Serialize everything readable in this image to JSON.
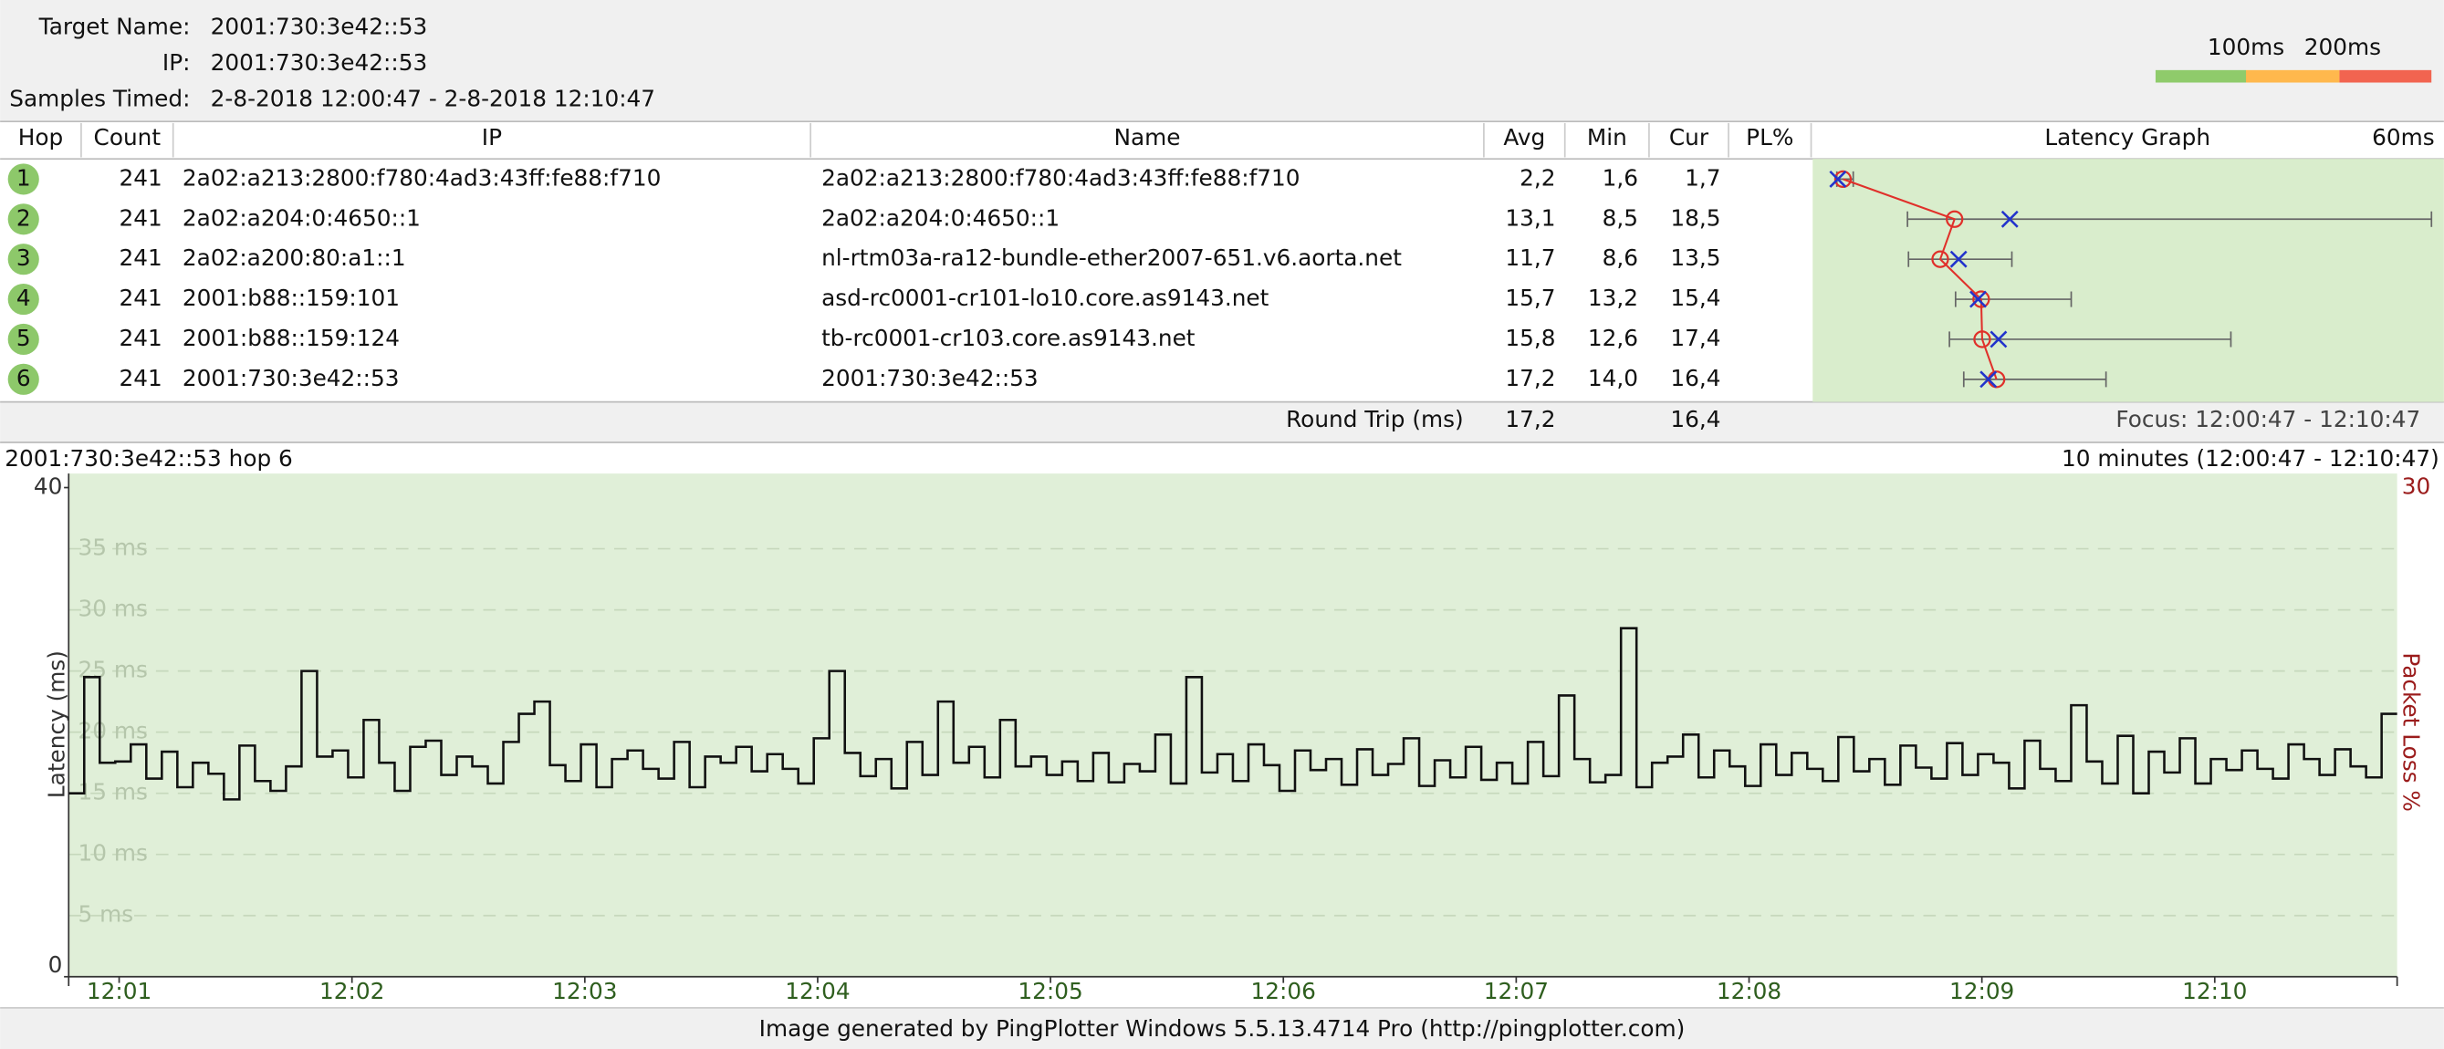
{
  "header": {
    "target_name_label": "Target Name:",
    "target_name": "2001:730:3e42::53",
    "ip_label": "IP:",
    "ip": "2001:730:3e42::53",
    "samples_label": "Samples Timed:",
    "samples": "2-8-2018 12:00:47 - 2-8-2018 12:10:47"
  },
  "scale_legend": {
    "labels": [
      "100ms",
      "200ms"
    ],
    "colors": [
      "#8fcb6b",
      "#ffb84d",
      "#f26450"
    ]
  },
  "table": {
    "columns": [
      "Hop",
      "Count",
      "IP",
      "Name",
      "Avg",
      "Min",
      "Cur",
      "PL%",
      "Latency Graph"
    ],
    "graph_scale": "60ms",
    "graph_max_ms": 60,
    "rows": [
      {
        "hop": 1,
        "count": 241,
        "ip": "2a02:a213:2800:f780:4ad3:43ff:fe88:f710",
        "name": "2a02:a213:2800:f780:4ad3:43ff:fe88:f710",
        "avg": {
          "value": 2.2,
          "label": "2,2"
        },
        "min": {
          "value": 1.6,
          "label": "1,6"
        },
        "cur": {
          "value": 1.7,
          "label": "1,7"
        },
        "max": 3.2
      },
      {
        "hop": 2,
        "count": 241,
        "ip": "2a02:a204:0:4650::1",
        "name": "2a02:a204:0:4650::1",
        "avg": {
          "value": 13.1,
          "label": "13,1"
        },
        "min": {
          "value": 8.5,
          "label": "8,5"
        },
        "cur": {
          "value": 18.5,
          "label": "18,5"
        },
        "max": 59.7
      },
      {
        "hop": 3,
        "count": 241,
        "ip": "2a02:a200:80:a1::1",
        "name": "nl-rtm03a-ra12-bundle-ether2007-651.v6.aorta.net",
        "avg": {
          "value": 11.7,
          "label": "11,7"
        },
        "min": {
          "value": 8.6,
          "label": "8,6"
        },
        "cur": {
          "value": 13.5,
          "label": "13,5"
        },
        "max": 18.7
      },
      {
        "hop": 4,
        "count": 241,
        "ip": "2001:b88::159:101",
        "name": "asd-rc0001-cr101-lo10.core.as9143.net",
        "avg": {
          "value": 15.7,
          "label": "15,7"
        },
        "min": {
          "value": 13.2,
          "label": "13,2"
        },
        "cur": {
          "value": 15.4,
          "label": "15,4"
        },
        "max": 24.5
      },
      {
        "hop": 5,
        "count": 241,
        "ip": "2001:b88::159:124",
        "name": "tb-rc0001-cr103.core.as9143.net",
        "avg": {
          "value": 15.8,
          "label": "15,8"
        },
        "min": {
          "value": 12.6,
          "label": "12,6"
        },
        "cur": {
          "value": 17.4,
          "label": "17,4"
        },
        "max": 40.1
      },
      {
        "hop": 6,
        "count": 241,
        "ip": "2001:730:3e42::53",
        "name": "2001:730:3e42::53",
        "avg": {
          "value": 17.2,
          "label": "17,2"
        },
        "min": {
          "value": 14.0,
          "label": "14,0"
        },
        "cur": {
          "value": 16.4,
          "label": "16,4"
        },
        "max": 27.9
      }
    ],
    "round_trip": {
      "label": "Round Trip (ms)",
      "avg": "17,2",
      "cur": "16,4"
    },
    "focus": "Focus: 12:00:47 - 12:10:47"
  },
  "chart_data": {
    "type": "line",
    "step": true,
    "title_left": "2001:730:3e42::53 hop 6",
    "title_right": "10 minutes (12:00:47 - 12:10:47)",
    "ylabel": "Latency (ms)",
    "y2label": "Packet Loss %",
    "color": "#111111",
    "background": "#e0efd8",
    "xlim": [
      0,
      600
    ],
    "xticks": [
      {
        "value": 13,
        "label": "12:01"
      },
      {
        "value": 73,
        "label": "12:02"
      },
      {
        "value": 133,
        "label": "12:03"
      },
      {
        "value": 193,
        "label": "12:04"
      },
      {
        "value": 253,
        "label": "12:05"
      },
      {
        "value": 313,
        "label": "12:06"
      },
      {
        "value": 373,
        "label": "12:07"
      },
      {
        "value": 433,
        "label": "12:08"
      },
      {
        "value": 493,
        "label": "12:09"
      },
      {
        "value": 553,
        "label": "12:10"
      }
    ],
    "ylim": [
      0,
      40
    ],
    "yticks": [
      0,
      40
    ],
    "grid": [
      {
        "value": 5,
        "label": "5 ms"
      },
      {
        "value": 10,
        "label": "10 ms"
      },
      {
        "value": 15,
        "label": "15 ms"
      },
      {
        "value": 20,
        "label": "20 ms"
      },
      {
        "value": 25,
        "label": "25 ms"
      },
      {
        "value": 30,
        "label": "30 ms"
      },
      {
        "value": 35,
        "label": "35 ms"
      }
    ],
    "y2lim": [
      0,
      30
    ],
    "y2ticks": [
      30
    ],
    "values": [
      15,
      24.5,
      17.5,
      17.6,
      19.0,
      16.2,
      18.4,
      15.5,
      17.5,
      16.6,
      14.5,
      18.9,
      16.0,
      15.2,
      17.2,
      25.0,
      18.0,
      18.5,
      16.3,
      21.0,
      17.5,
      15.2,
      18.8,
      19.3,
      16.5,
      18.0,
      17.2,
      15.8,
      19.2,
      21.5,
      22.5,
      17.3,
      16.0,
      19.0,
      15.5,
      17.8,
      18.5,
      17.0,
      16.2,
      19.2,
      15.5,
      18.0,
      17.5,
      18.8,
      16.8,
      18.2,
      17.0,
      15.8,
      19.5,
      25.0,
      18.3,
      16.4,
      17.8,
      15.4,
      19.2,
      16.5,
      22.5,
      17.5,
      18.8,
      16.3,
      21.0,
      17.2,
      18.0,
      16.5,
      17.6,
      16.0,
      18.3,
      15.9,
      17.4,
      16.8,
      19.8,
      15.8,
      24.5,
      16.7,
      18.2,
      16.0,
      19.0,
      17.3,
      15.2,
      18.5,
      16.9,
      17.8,
      15.7,
      18.6,
      16.5,
      17.4,
      19.5,
      15.6,
      17.7,
      16.3,
      18.8,
      16.1,
      17.5,
      15.8,
      19.2,
      16.4,
      23.0,
      17.8,
      15.9,
      16.5,
      28.5,
      15.5,
      17.5,
      18.0,
      19.8,
      16.3,
      18.5,
      17.2,
      15.6,
      19.0,
      16.5,
      18.3,
      17.0,
      16.0,
      19.6,
      16.8,
      17.8,
      15.7,
      18.9,
      17.1,
      16.2,
      19.1,
      16.5,
      18.2,
      17.5,
      15.4,
      19.3,
      17.0,
      16.0,
      22.2,
      17.6,
      15.8,
      19.7,
      15.0,
      18.4,
      16.7,
      19.5,
      15.8,
      17.8,
      16.9,
      18.5,
      17.0,
      16.2,
      19.0,
      17.8,
      16.5,
      18.6,
      17.2,
      16.3,
      21.5
    ]
  },
  "footer": "Image generated by PingPlotter Windows 5.5.13.4714 Pro (http://pingplotter.com)"
}
